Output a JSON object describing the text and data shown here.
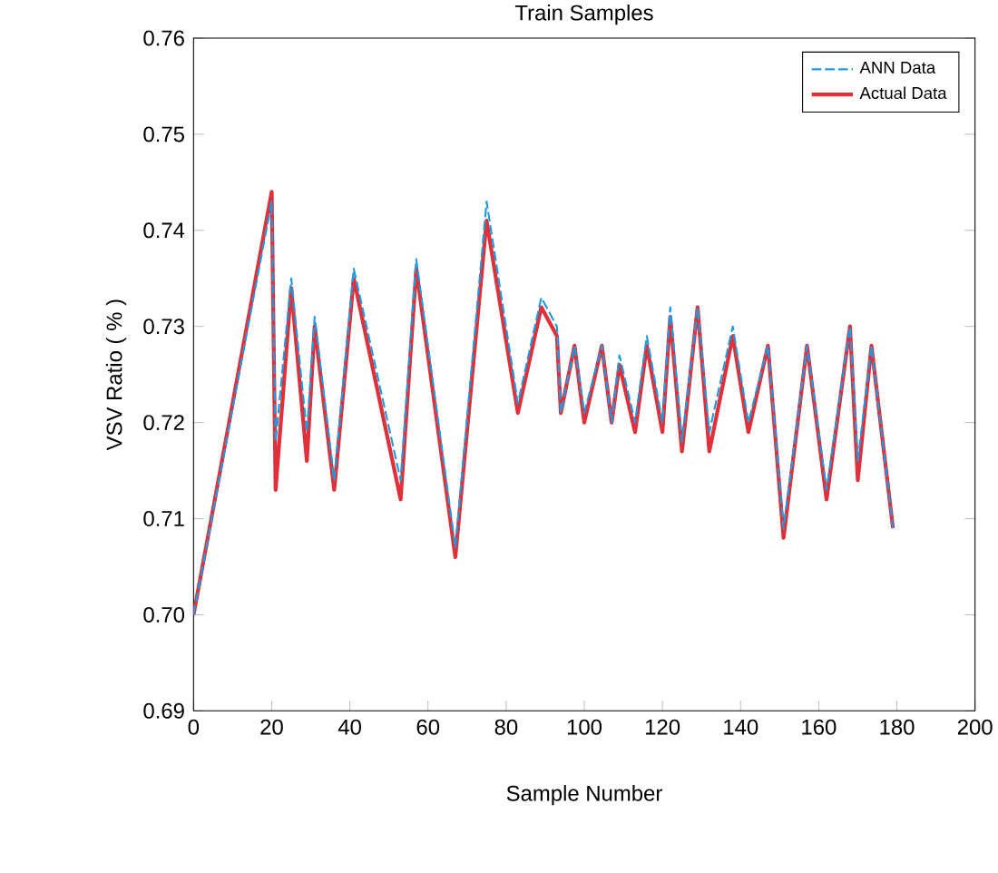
{
  "chart_data": {
    "type": "line",
    "title": "Train  Samples",
    "xlabel": "Sample Number",
    "ylabel": "VSV Ratio ( % )",
    "x": [
      0,
      20,
      21,
      25,
      29,
      31,
      36,
      41,
      53,
      57,
      67,
      75,
      83,
      89,
      93,
      94,
      97.5,
      100,
      104.5,
      107,
      109,
      113,
      116,
      120,
      122,
      125,
      129,
      132,
      138,
      142,
      147,
      151,
      157,
      162,
      168,
      170,
      173.5,
      179
    ],
    "series": [
      {
        "name": "ANN Data",
        "color": "#1e9be0",
        "line_style": "dashed",
        "values": [
          0.7,
          0.743,
          0.718,
          0.735,
          0.719,
          0.731,
          0.714,
          0.736,
          0.714,
          0.737,
          0.707,
          0.743,
          0.722,
          0.733,
          0.73,
          0.721,
          0.728,
          0.721,
          0.728,
          0.72,
          0.727,
          0.72,
          0.729,
          0.72,
          0.732,
          0.718,
          0.732,
          0.719,
          0.73,
          0.72,
          0.728,
          0.709,
          0.728,
          0.713,
          0.73,
          0.716,
          0.728,
          0.709
        ]
      },
      {
        "name": "Actual Data",
        "color": "#e0303a",
        "line_style": "solid",
        "values": [
          0.7,
          0.744,
          0.713,
          0.734,
          0.716,
          0.73,
          0.713,
          0.735,
          0.712,
          0.736,
          0.706,
          0.741,
          0.721,
          0.732,
          0.729,
          0.721,
          0.728,
          0.72,
          0.728,
          0.72,
          0.726,
          0.719,
          0.728,
          0.719,
          0.731,
          0.717,
          0.732,
          0.717,
          0.729,
          0.719,
          0.728,
          0.708,
          0.728,
          0.712,
          0.73,
          0.714,
          0.728,
          0.709
        ]
      }
    ],
    "xlim": [
      0,
      200
    ],
    "xticks": [
      0,
      20,
      40,
      60,
      80,
      100,
      120,
      140,
      160,
      180,
      200
    ],
    "ylim": [
      0.69,
      0.76
    ],
    "yticks": [
      {
        "value": 0.69,
        "label": "0.69"
      },
      {
        "value": 0.7,
        "label": "0.70"
      },
      {
        "value": 0.71,
        "label": "0.71"
      },
      {
        "value": 0.72,
        "label": "0.72"
      },
      {
        "value": 0.73,
        "label": "0.73"
      },
      {
        "value": 0.74,
        "label": "0.74"
      },
      {
        "value": 0.75,
        "label": "0.75"
      },
      {
        "value": 0.76,
        "label": "0.76"
      }
    ],
    "legend": "top right",
    "grid": false
  }
}
